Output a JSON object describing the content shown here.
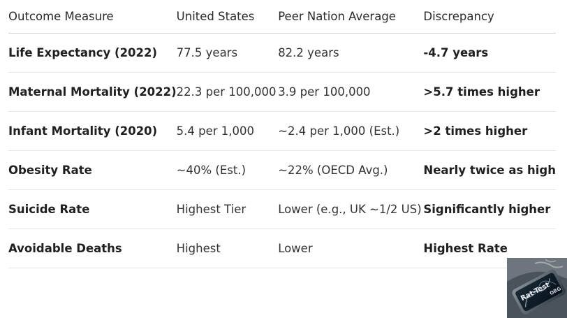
{
  "table": {
    "headers": [
      "Outcome Measure",
      "United States",
      "Peer Nation Average",
      "Discrepancy"
    ],
    "rows": [
      [
        "Life Expectancy (2022)",
        "77.5 years",
        "82.2 years",
        "-4.7 years"
      ],
      [
        "Maternal Mortality (2022)",
        "22.3 per 100,000",
        "3.9 per 100,000",
        ">5.7 times higher"
      ],
      [
        "Infant Mortality (2020)",
        "5.4 per 1,000",
        "~2.4 per 1,000 (Est.)",
        ">2 times higher"
      ],
      [
        "Obesity Rate",
        "~40% (Est.)",
        "~22% (OECD Avg.)",
        "Nearly twice as high"
      ],
      [
        "Suicide Rate",
        "Highest Tier",
        "Lower (e.g., UK ~1/2 US)",
        "Significantly higher"
      ],
      [
        "Avoidable Deaths",
        "Highest",
        "Lower",
        "Highest Rate"
      ]
    ]
  },
  "watermark": {
    "text": "Rat-Test",
    "text2": "ORG"
  }
}
